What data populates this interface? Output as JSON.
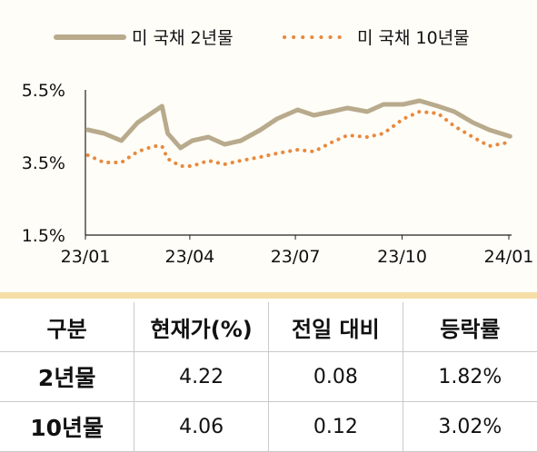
{
  "chart_data": {
    "type": "line",
    "legend_placement": "top",
    "y_unit": "%",
    "ylim": [
      1.5,
      5.5
    ],
    "y_ticks": [
      "5.5%",
      "3.5%",
      "1.5%"
    ],
    "y_tick_values": [
      5.5,
      3.5,
      1.5
    ],
    "x_ticks": [
      "23/01",
      "23/04",
      "23/07",
      "23/10",
      "24/01"
    ],
    "series": [
      {
        "name": "미 국채 2년물",
        "color": "#b8aa8c",
        "style": "solid",
        "x": [
          "2023-01-03",
          "2023-01-17",
          "2023-02-01",
          "2023-02-15",
          "2023-03-01",
          "2023-03-08",
          "2023-03-13",
          "2023-03-24",
          "2023-04-03",
          "2023-04-17",
          "2023-05-01",
          "2023-05-15",
          "2023-06-01",
          "2023-06-15",
          "2023-07-03",
          "2023-07-17",
          "2023-08-01",
          "2023-08-15",
          "2023-09-01",
          "2023-09-15",
          "2023-10-02",
          "2023-10-16",
          "2023-11-01",
          "2023-11-15",
          "2023-12-01",
          "2023-12-15",
          "2024-01-02"
        ],
        "values": [
          4.4,
          4.3,
          4.1,
          4.6,
          4.9,
          5.05,
          4.3,
          3.9,
          4.1,
          4.2,
          4.0,
          4.1,
          4.4,
          4.7,
          4.95,
          4.8,
          4.9,
          5.0,
          4.9,
          5.1,
          5.1,
          5.2,
          5.05,
          4.9,
          4.6,
          4.4,
          4.22
        ]
      },
      {
        "name": "미 국채 10년물",
        "color": "#e8893e",
        "style": "dotted",
        "x": [
          "2023-01-03",
          "2023-01-17",
          "2023-02-01",
          "2023-02-15",
          "2023-03-01",
          "2023-03-08",
          "2023-03-13",
          "2023-03-24",
          "2023-04-03",
          "2023-04-17",
          "2023-05-01",
          "2023-05-15",
          "2023-06-01",
          "2023-06-15",
          "2023-07-03",
          "2023-07-17",
          "2023-08-01",
          "2023-08-15",
          "2023-09-01",
          "2023-09-15",
          "2023-10-02",
          "2023-10-16",
          "2023-11-01",
          "2023-11-15",
          "2023-12-01",
          "2023-12-15",
          "2024-01-02"
        ],
        "values": [
          3.7,
          3.5,
          3.5,
          3.8,
          3.95,
          3.95,
          3.6,
          3.4,
          3.4,
          3.55,
          3.45,
          3.55,
          3.65,
          3.75,
          3.85,
          3.8,
          4.05,
          4.25,
          4.2,
          4.3,
          4.7,
          4.9,
          4.85,
          4.5,
          4.2,
          3.95,
          4.06
        ]
      }
    ],
    "table": {
      "headers": [
        "구분",
        "현재가(%)",
        "전일 대비",
        "등락률"
      ],
      "rows": [
        [
          "2년물",
          "4.22",
          "0.08",
          "1.82%"
        ],
        [
          "10년물",
          "4.06",
          "0.12",
          "3.02%"
        ]
      ]
    }
  }
}
